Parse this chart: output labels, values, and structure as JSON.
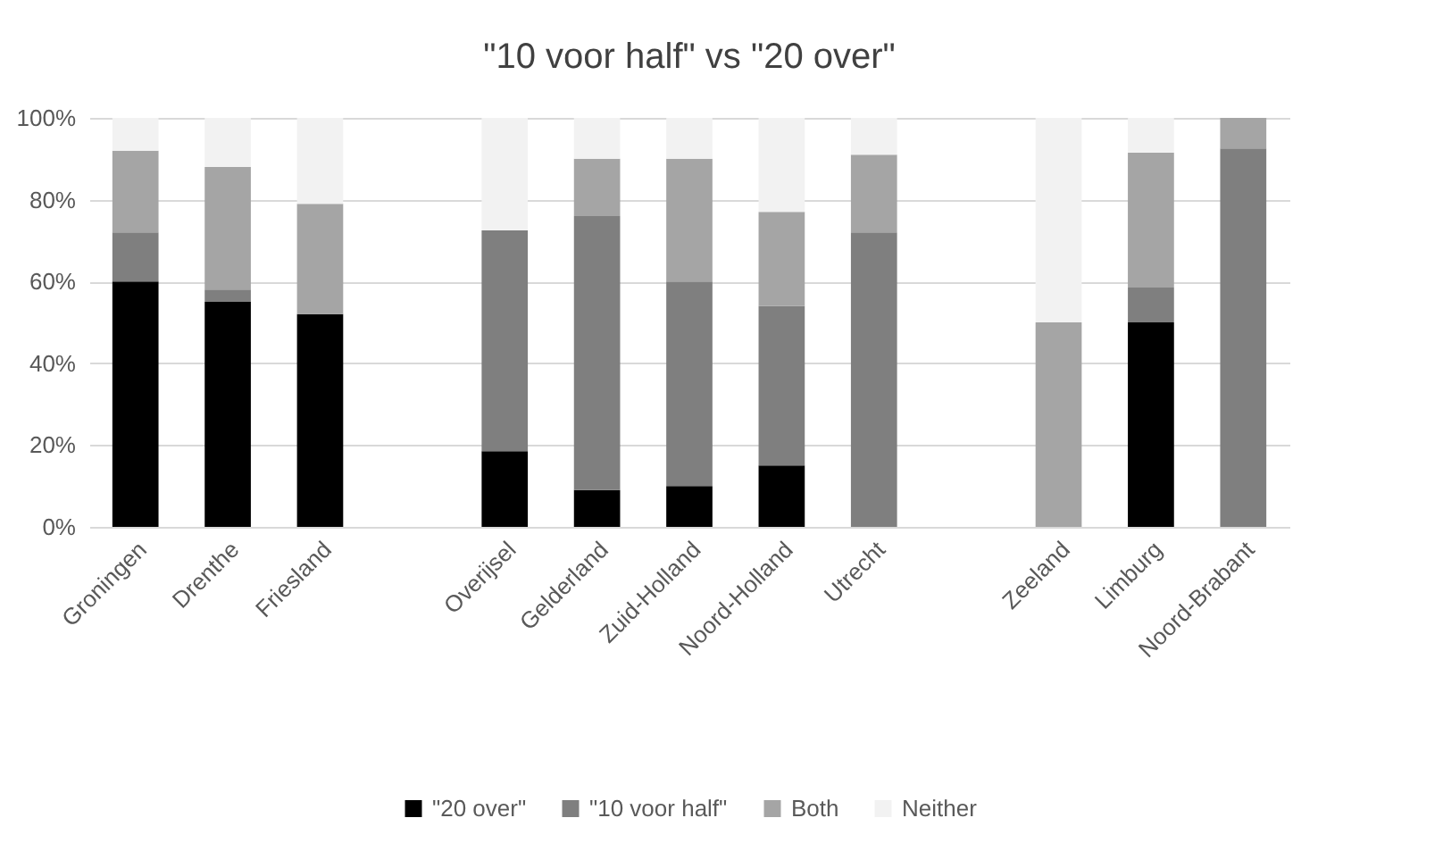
{
  "chart_data": {
    "type": "bar",
    "title": "\"10 voor half\" vs \"20 over\"",
    "stacked": true,
    "categories": [
      "Groningen",
      "Drenthe",
      "Friesland",
      null,
      "Overijsel",
      "Gelderland",
      "Zuid-Holland",
      "Noord-Holland",
      "Utrecht",
      null,
      "Zeeland",
      "Limburg",
      "Noord-Brabant"
    ],
    "series": [
      {
        "name": "\"20 over\"",
        "color": "#000000",
        "values": [
          60,
          55,
          52,
          null,
          18.5,
          9,
          10,
          15,
          0,
          null,
          0,
          50,
          0
        ]
      },
      {
        "name": "\"10 voor half\"",
        "color": "#7f7f7f",
        "values": [
          12,
          3,
          0,
          null,
          54,
          67,
          50,
          39,
          72,
          null,
          0,
          8.5,
          92.5
        ]
      },
      {
        "name": "Both",
        "color": "#a5a5a5",
        "values": [
          20,
          30,
          27,
          null,
          0,
          14,
          30,
          23,
          19,
          null,
          50,
          33,
          7.5
        ]
      },
      {
        "name": "Neither",
        "color": "#f2f2f2",
        "values": [
          8,
          12,
          21,
          null,
          27.5,
          10,
          10,
          23,
          9,
          null,
          50,
          8.5,
          0
        ]
      }
    ],
    "ylim": [
      0,
      100
    ],
    "yticks": [
      {
        "value": 0,
        "label": "0%"
      },
      {
        "value": 20,
        "label": "20%"
      },
      {
        "value": 40,
        "label": "40%"
      },
      {
        "value": 60,
        "label": "60%"
      },
      {
        "value": 80,
        "label": "80%"
      },
      {
        "value": 100,
        "label": "100%"
      }
    ],
    "grid": "y",
    "legend": "bottom"
  }
}
